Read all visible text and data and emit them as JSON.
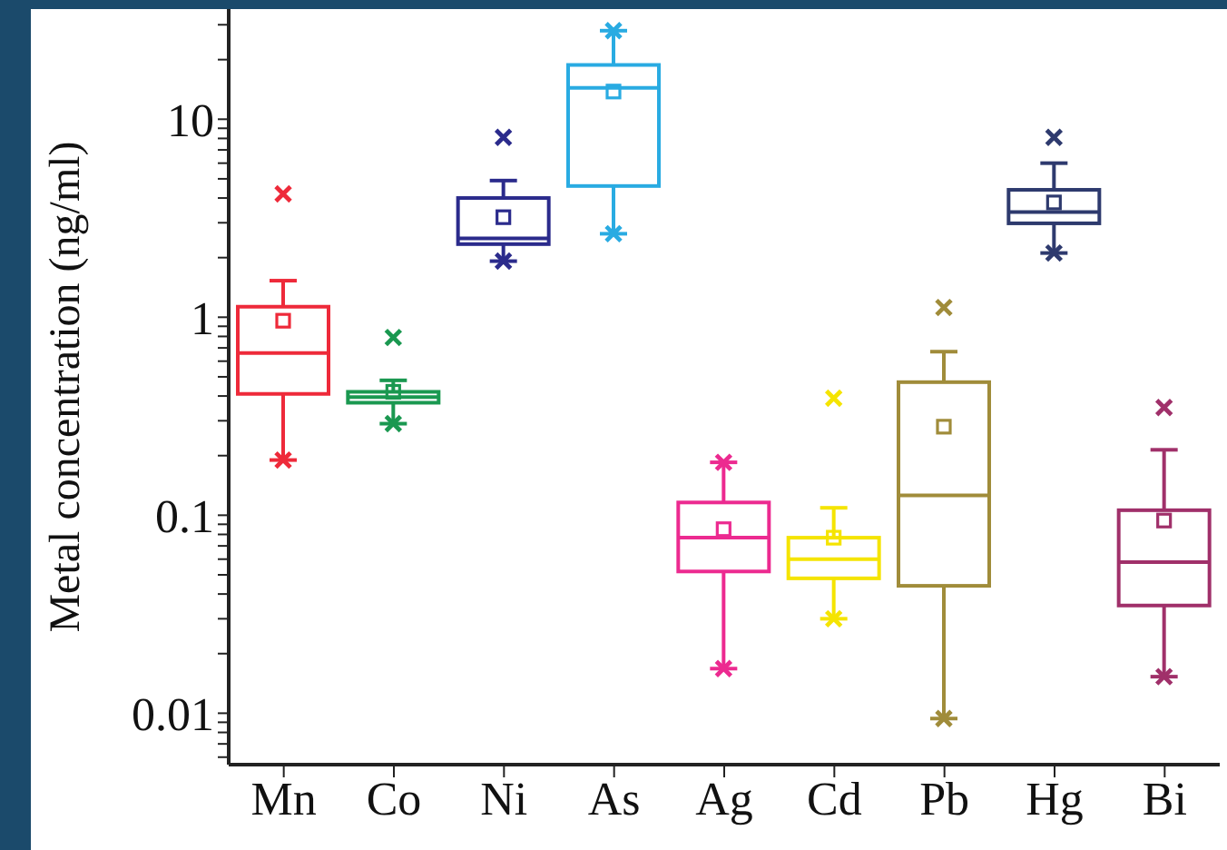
{
  "chart_data": {
    "type": "box",
    "ylabel": "Metal concentration (ng/ml)",
    "categories": [
      "Mn",
      "Co",
      "Ni",
      "As",
      "Ag",
      "Cd",
      "Pb",
      "Hg",
      "Bi"
    ],
    "colors": [
      "#ee2a3a",
      "#1a9850",
      "#2b2b8c",
      "#29abe2",
      "#ec2a90",
      "#f5e400",
      "#a08c3a",
      "#2e3a6e",
      "#a0306a"
    ],
    "boxes": [
      {
        "low": 0.19,
        "q1": 0.41,
        "median": 0.66,
        "q3": 1.13,
        "high": 1.53,
        "mean": 0.96,
        "outliers": [
          4.2,
          0.19
        ]
      },
      {
        "low": 0.29,
        "q1": 0.37,
        "median": 0.395,
        "q3": 0.42,
        "high": 0.48,
        "mean": 0.42,
        "outliers": [
          0.79,
          0.29
        ]
      },
      {
        "low": 1.92,
        "q1": 2.34,
        "median": 2.5,
        "q3": 4.0,
        "high": 4.9,
        "mean": 3.2,
        "outliers": [
          8.1,
          1.92
        ]
      },
      {
        "low": 2.64,
        "q1": 4.6,
        "median": 14.4,
        "q3": 18.8,
        "high": 28,
        "mean": 13.8,
        "outliers": [
          28,
          2.64
        ]
      },
      {
        "low": 0.0168,
        "q1": 0.052,
        "median": 0.077,
        "q3": 0.116,
        "high": 0.185,
        "mean": 0.085,
        "outliers": [
          0.185,
          0.0168
        ]
      },
      {
        "low": 0.03,
        "q1": 0.048,
        "median": 0.06,
        "q3": 0.077,
        "high": 0.109,
        "mean": 0.077,
        "outliers": [
          0.39,
          0.03
        ]
      },
      {
        "low": 0.0094,
        "q1": 0.044,
        "median": 0.126,
        "q3": 0.47,
        "high": 0.67,
        "mean": 0.28,
        "outliers": [
          1.12,
          0.0094
        ]
      },
      {
        "low": 2.11,
        "q1": 2.98,
        "median": 3.4,
        "q3": 4.4,
        "high": 6.0,
        "mean": 3.8,
        "outliers": [
          8.1,
          2.11
        ]
      },
      {
        "low": 0.0153,
        "q1": 0.035,
        "median": 0.058,
        "q3": 0.106,
        "high": 0.214,
        "mean": 0.094,
        "outliers": [
          0.35,
          0.0153
        ]
      }
    ],
    "log": true,
    "ylim": [
      0.0055,
      36
    ],
    "yticks": [
      {
        "value": 0.006,
        "label": null
      },
      {
        "value": 0.007,
        "label": null
      },
      {
        "value": 0.008,
        "label": null
      },
      {
        "value": 0.009,
        "label": null
      },
      0.01,
      {
        "value": 0.02,
        "label": null
      },
      {
        "value": 0.03,
        "label": null
      },
      {
        "value": 0.04,
        "label": null
      },
      {
        "value": 0.05,
        "label": null
      },
      {
        "value": 0.06,
        "label": null
      },
      {
        "value": 0.07,
        "label": null
      },
      {
        "value": 0.08,
        "label": null
      },
      {
        "value": 0.09,
        "label": null
      },
      0.1,
      {
        "value": 0.2,
        "label": null
      },
      {
        "value": 0.3,
        "label": null
      },
      {
        "value": 0.4,
        "label": null
      },
      {
        "value": 0.5,
        "label": null
      },
      {
        "value": 0.6,
        "label": null
      },
      {
        "value": 0.7,
        "label": null
      },
      {
        "value": 0.8,
        "label": null
      },
      {
        "value": 0.9,
        "label": null
      },
      1,
      {
        "value": 2,
        "label": null
      },
      {
        "value": 3,
        "label": null
      },
      {
        "value": 4,
        "label": null
      },
      {
        "value": 5,
        "label": null
      },
      {
        "value": 6,
        "label": null
      },
      {
        "value": 7,
        "label": null
      },
      {
        "value": 8,
        "label": null
      },
      {
        "value": 9,
        "label": null
      },
      10,
      {
        "value": 20,
        "label": null
      },
      {
        "value": 30,
        "label": null
      }
    ],
    "grid": false,
    "legend": false
  }
}
